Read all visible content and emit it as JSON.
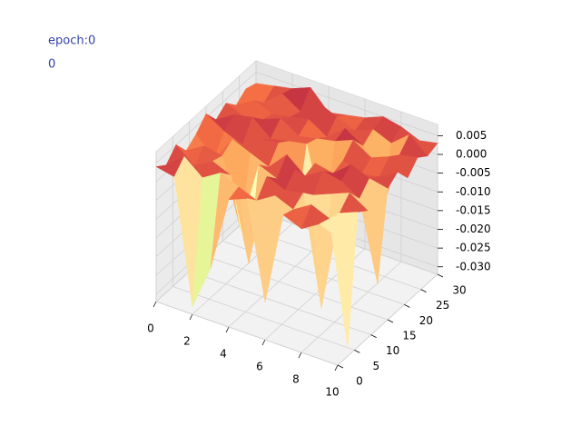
{
  "chart_data": {
    "type": "surface3d",
    "annotations": [
      "epoch:0",
      "0"
    ],
    "x": [
      0,
      1,
      2,
      3,
      4,
      5,
      6,
      7,
      8,
      9,
      10
    ],
    "y": [
      0,
      3,
      6,
      9,
      12,
      15,
      18,
      21,
      24,
      27,
      30
    ],
    "z": [
      [
        0.004,
        0.002,
        0.005,
        0.001,
        0.003,
        0.006,
        0.002,
        0.004,
        0.001,
        0.003,
        0.002
      ],
      [
        0.003,
        0.006,
        0.001,
        0.004,
        -0.002,
        0.003,
        0.005,
        0.002,
        0.004,
        0.001,
        0.003
      ],
      [
        -0.03,
        0.002,
        0.004,
        0.003,
        0.005,
        0.001,
        0.006,
        0.003,
        0.002,
        0.005,
        0.004
      ],
      [
        -0.018,
        0.005,
        0.002,
        -0.015,
        0.003,
        0.004,
        0.002,
        0.005,
        0.003,
        0.002,
        0.006
      ],
      [
        0.002,
        0.003,
        -0.02,
        0.004,
        0.001,
        0.005,
        0.003,
        0.002,
        0.004,
        0.006,
        0.001
      ],
      [
        0.004,
        0.001,
        0.005,
        0.002,
        0.006,
        -0.012,
        0.004,
        0.003,
        0.001,
        0.004,
        0.002
      ],
      [
        -0.022,
        0.004,
        0.003,
        0.006,
        0.002,
        0.003,
        -0.016,
        0.004,
        0.005,
        0.002,
        0.003
      ],
      [
        0.003,
        0.002,
        0.004,
        0.001,
        0.005,
        0.002,
        0.003,
        0.006,
        0.002,
        0.004,
        0.005
      ],
      [
        0.001,
        0.005,
        -0.025,
        0.003,
        0.004,
        0.006,
        0.001,
        0.003,
        -0.014,
        0.002,
        0.004
      ],
      [
        0.004,
        0.003,
        0.002,
        0.005,
        0.001,
        0.004,
        0.002,
        0.005,
        0.003,
        0.006,
        0.002
      ],
      [
        0.002,
        -0.03,
        0.004,
        0.002,
        -0.02,
        0.003,
        0.005,
        0.001,
        0.004,
        0.002,
        0.003
      ]
    ],
    "colormap": "Spectral_r",
    "xlim": [
      0,
      10
    ],
    "xticks": [
      0,
      2,
      4,
      6,
      8,
      10
    ],
    "ylim": [
      0,
      30
    ],
    "yticks": [
      0,
      5,
      10,
      15,
      20,
      25,
      30
    ],
    "zlim": [
      -0.032,
      0.008
    ],
    "zticks": [
      0.005,
      {
        "value": 0,
        "label": "0.000"
      },
      -0.005,
      {
        "value": -0.01,
        "label": "-0.010"
      },
      -0.015,
      {
        "value": -0.02,
        "label": "-0.020"
      },
      -0.025,
      {
        "value": -0.03,
        "label": "-0.030"
      }
    ],
    "grid": true
  }
}
